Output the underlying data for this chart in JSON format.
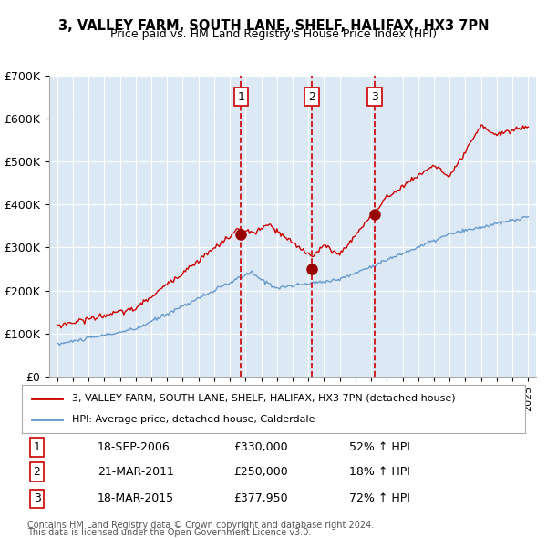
{
  "title1": "3, VALLEY FARM, SOUTH LANE, SHELF, HALIFAX, HX3 7PN",
  "title2": "Price paid vs. HM Land Registry's House Price Index (HPI)",
  "ylabel": "",
  "bg_color": "#dce9f5",
  "plot_bg_color": "#dce9f5",
  "grid_color": "#ffffff",
  "red_line_color": "#cc0000",
  "blue_line_color": "#6699cc",
  "sale_marker_color": "#990000",
  "vline_color": "#cc0000",
  "sale_points": [
    {
      "date_num": 2006.72,
      "price": 330000,
      "label": "1"
    },
    {
      "date_num": 2011.22,
      "price": 250000,
      "label": "2"
    },
    {
      "date_num": 2015.22,
      "price": 377950,
      "label": "3"
    }
  ],
  "sale_annotations": [
    {
      "label": "1",
      "date": "18-SEP-2006",
      "price": "£330,000",
      "hpi": "52% ↑ HPI"
    },
    {
      "label": "2",
      "date": "21-MAR-2011",
      "price": "£250,000",
      "hpi": "18% ↑ HPI"
    },
    {
      "label": "3",
      "date": "18-MAR-2015",
      "price": "£377,950",
      "hpi": "72% ↑ HPI"
    }
  ],
  "legend_line1": "3, VALLEY FARM, SOUTH LANE, SHELF, HALIFAX, HX3 7PN (detached house)",
  "legend_line2": "HPI: Average price, detached house, Calderdale",
  "footer1": "Contains HM Land Registry data © Crown copyright and database right 2024.",
  "footer2": "This data is licensed under the Open Government Licence v3.0.",
  "ylim": [
    0,
    700000
  ],
  "yticks": [
    0,
    100000,
    200000,
    300000,
    400000,
    500000,
    600000,
    700000
  ],
  "ytick_labels": [
    "£0",
    "£100K",
    "£200K",
    "£300K",
    "£400K",
    "£500K",
    "£600K",
    "£700K"
  ],
  "xlim_start": 1994.5,
  "xlim_end": 2025.5
}
